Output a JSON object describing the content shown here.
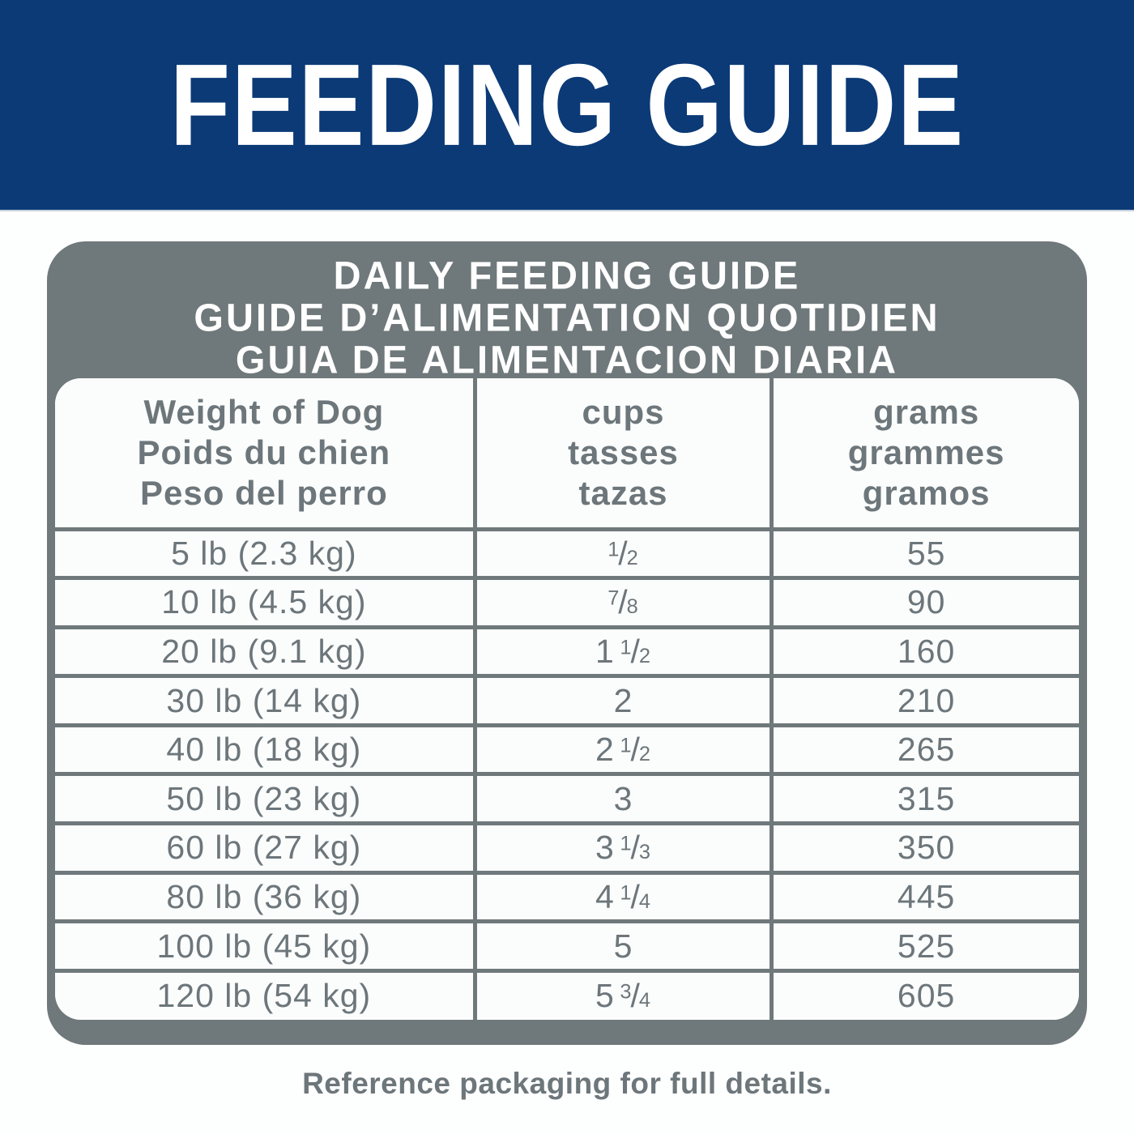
{
  "banner": {
    "title": "FEEDING GUIDE"
  },
  "panel": {
    "title_lines": [
      "DAILY FEEDING GUIDE",
      "GUIDE D’ALIMENTATION QUOTIDIEN",
      "GUIA DE ALIMENTACION DIARIA"
    ],
    "columns": [
      {
        "id": "weight",
        "lines": [
          "Weight of Dog",
          "Poids du chien",
          "Peso del perro"
        ]
      },
      {
        "id": "cups",
        "lines": [
          "cups",
          "tasses",
          "tazas"
        ]
      },
      {
        "id": "grams",
        "lines": [
          "grams",
          "grammes",
          "gramos"
        ]
      }
    ],
    "rows": [
      {
        "weight": "5 lb (2.3 kg)",
        "cups": {
          "whole": "",
          "num": "1",
          "den": "2"
        },
        "grams": "55"
      },
      {
        "weight": "10 lb (4.5 kg)",
        "cups": {
          "whole": "",
          "num": "7",
          "den": "8"
        },
        "grams": "90"
      },
      {
        "weight": "20 lb (9.1 kg)",
        "cups": {
          "whole": "1",
          "num": "1",
          "den": "2"
        },
        "grams": "160"
      },
      {
        "weight": "30 lb (14 kg)",
        "cups": {
          "whole": "2",
          "num": "",
          "den": ""
        },
        "grams": "210"
      },
      {
        "weight": "40 lb (18 kg)",
        "cups": {
          "whole": "2",
          "num": "1",
          "den": "2"
        },
        "grams": "265"
      },
      {
        "weight": "50 lb (23 kg)",
        "cups": {
          "whole": "3",
          "num": "",
          "den": ""
        },
        "grams": "315"
      },
      {
        "weight": "60 lb (27 kg)",
        "cups": {
          "whole": "3",
          "num": "1",
          "den": "3"
        },
        "grams": "350"
      },
      {
        "weight": "80 lb (36 kg)",
        "cups": {
          "whole": "4",
          "num": "1",
          "den": "4"
        },
        "grams": "445"
      },
      {
        "weight": "100 lb (45 kg)",
        "cups": {
          "whole": "5",
          "num": "",
          "den": ""
        },
        "grams": "525"
      },
      {
        "weight": "120 lb (54 kg)",
        "cups": {
          "whole": "5",
          "num": "3",
          "den": "4"
        },
        "grams": "605"
      }
    ]
  },
  "footer": {
    "note": "Reference packaging for full details."
  },
  "colors": {
    "banner_blue": "#0b3a76",
    "panel_gray": "#6f787a",
    "cell_white": "#fbfdfd",
    "text_gray": "#6d767a",
    "title_white": "#ffffff",
    "page_bg": "#fdfefe"
  }
}
